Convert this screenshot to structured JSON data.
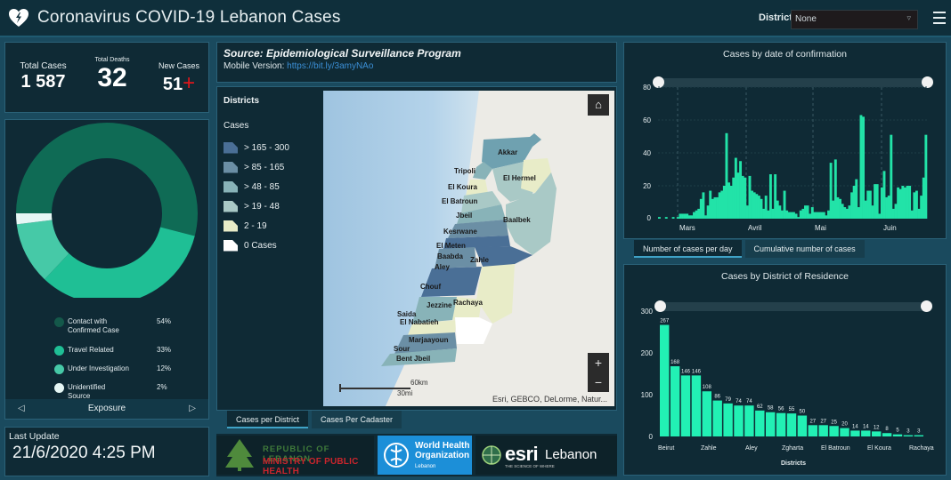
{
  "header": {
    "title": "Coronavirus COVID-19 Lebanon Cases",
    "icon": "heart-bolt-icon",
    "district_label": "District",
    "district_value": "None",
    "menu_icon": "hamburger-menu-icon"
  },
  "stats": {
    "total_cases_label": "Total Cases",
    "total_cases": "1 587",
    "total_deaths_label": "Total Deaths",
    "total_deaths": "32",
    "new_cases_label": "New Cases",
    "new_cases": "51",
    "new_cases_symbol": "+"
  },
  "exposure": {
    "title": "Exposure",
    "items": [
      {
        "label": "Contact with Confirmed Case",
        "pct": "54%",
        "color": "#0f6b55"
      },
      {
        "label": "Travel Related",
        "pct": "33%",
        "color": "#1fbf95"
      },
      {
        "label": "Under Investigation",
        "pct": "12%",
        "color": "#3fc7a5"
      },
      {
        "label": "Unidentified Source",
        "pct": "2%",
        "color": "#e6f7f5"
      }
    ]
  },
  "last_update": {
    "label": "Last Update",
    "value": "21/6/2020 4:25 PM"
  },
  "source": {
    "text": "Source: Epidemiological Surveillance Program",
    "mobile_label": "Mobile Version:",
    "mobile_link": "https://bit.ly/3amyNAo"
  },
  "map": {
    "legend_title": "Districts",
    "legend_subtitle": "Cases",
    "legend": [
      {
        "label": "> 165 - 300",
        "color": "#4a6f96"
      },
      {
        "label": "> 85 - 165",
        "color": "#6b8fa5"
      },
      {
        "label": "> 48 - 85",
        "color": "#88b3b8"
      },
      {
        "label": "> 19 - 48",
        "color": "#a9c9c6"
      },
      {
        "label": "2 - 19",
        "color": "#e8ecc8"
      },
      {
        "label": "0 Cases",
        "color": "#ffffff"
      }
    ],
    "districts": [
      "Akkar",
      "Tripoli",
      "El Hermel",
      "El Koura",
      "El Batroun",
      "Jbeil",
      "Baalbek",
      "Kesrwane",
      "El Meten",
      "Baabda",
      "Zahle",
      "Aley",
      "Chouf",
      "Rachaya",
      "Jezzine",
      "Saida",
      "El Nabatieh",
      "Marjaayoun",
      "Sour",
      "Bent Jbeil"
    ],
    "scale_km": "60km",
    "scale_mi": "30mi",
    "attribution": "Esri, GEBCO, DeLorme, Natur...",
    "home_icon": "home-icon",
    "zoom_in": "+",
    "zoom_out": "−",
    "tabs": [
      "Cases per District",
      "Cases Per Cadaster"
    ]
  },
  "logos": {
    "moh_line1": "REPUBLIC OF LEBANON",
    "moh_line2": "MINISTRY OF PUBLIC HEALTH",
    "who_line1": "World Health",
    "who_line2": "Organization",
    "who_line3": "Lebanon",
    "esri_brand": "esri",
    "esri_country": "Lebanon",
    "esri_tagline": "THE SCIENCE OF WHERE"
  },
  "chart_tabs": [
    "Number of cases per day",
    "Cumulative number of cases"
  ],
  "chart_data": [
    {
      "type": "bar",
      "title": "Cases by  date of confirmation",
      "xlabel": "",
      "ylabel": "",
      "ylim": [
        0,
        80
      ],
      "yticks": [
        0,
        20,
        40,
        60,
        80
      ],
      "x_tick_labels": [
        "Mars",
        "Avril",
        "Mai",
        "Juin"
      ],
      "values": [
        1,
        0,
        0,
        1,
        0,
        0,
        1,
        0,
        1,
        3,
        3,
        3,
        3,
        2,
        2,
        4,
        5,
        6,
        12,
        16,
        2,
        8,
        17,
        12,
        13,
        13,
        16,
        17,
        20,
        52,
        22,
        20,
        25,
        37,
        28,
        35,
        26,
        25,
        8,
        26,
        17,
        16,
        15,
        14,
        12,
        6,
        14,
        5,
        27,
        6,
        27,
        11,
        8,
        5,
        17,
        5,
        4,
        4,
        4,
        3,
        1,
        5,
        6,
        8,
        8,
        3,
        7,
        4,
        4,
        4,
        4,
        4,
        2,
        5,
        34,
        11,
        36,
        13,
        12,
        9,
        7,
        6,
        8,
        16,
        20,
        24,
        7,
        63,
        62,
        11,
        17,
        17,
        8,
        21,
        21,
        3,
        19,
        29,
        13,
        14,
        51,
        6,
        9,
        19,
        18,
        20,
        19,
        20,
        20,
        5,
        16,
        17,
        6,
        14,
        25,
        51
      ]
    },
    {
      "type": "bar",
      "title": "Cases by District of Residence",
      "xlabel": "Districts",
      "ylabel": "",
      "ylim": [
        0,
        300
      ],
      "yticks": [
        0,
        100,
        200,
        300
      ],
      "x_tick_labels": [
        "Beirut",
        "Zahle",
        "Aley",
        "Zgharta",
        "El Batroun",
        "El Koura",
        "Rachaya"
      ],
      "values": [
        267,
        168,
        146,
        146,
        108,
        86,
        79,
        74,
        74,
        62,
        58,
        56,
        55,
        50,
        27,
        27,
        25,
        20,
        14,
        14,
        12,
        8,
        5,
        3,
        3
      ]
    }
  ]
}
